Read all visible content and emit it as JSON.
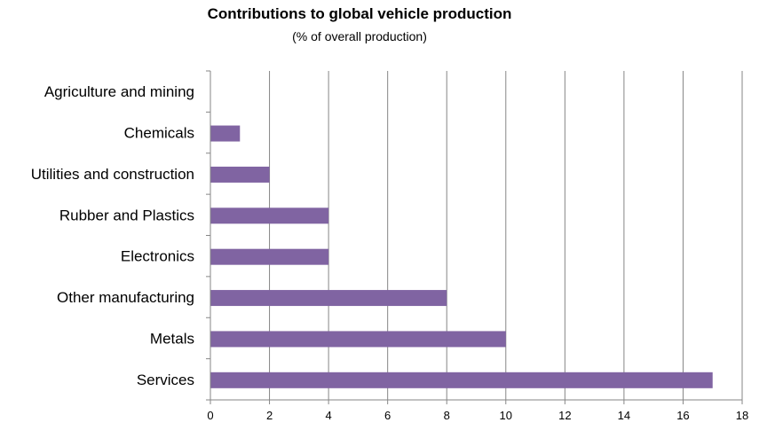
{
  "chart_data": {
    "type": "bar",
    "orientation": "horizontal",
    "title": "Contributions to global vehicle production",
    "subtitle": "(% of overall production)",
    "xlabel": "",
    "ylabel": "",
    "categories": [
      "Agriculture and mining",
      "Chemicals",
      "Utilities and construction",
      "Rubber and Plastics",
      "Electronics",
      "Other manufacturing",
      "Metals",
      "Services"
    ],
    "values": [
      0,
      1,
      2,
      4,
      4,
      8,
      10,
      17
    ],
    "xlim": [
      0,
      18
    ],
    "xticks": [
      0,
      2,
      4,
      6,
      8,
      10,
      12,
      14,
      16,
      18
    ],
    "grid": "vertical",
    "legend": "none",
    "bar_color": "#8064A2"
  }
}
